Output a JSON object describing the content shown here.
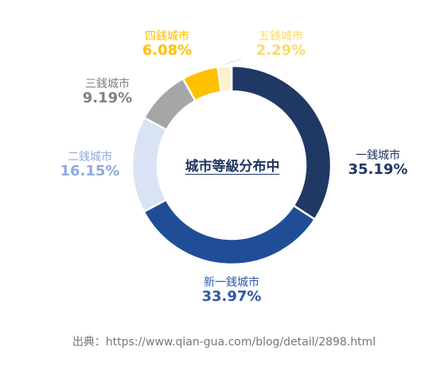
{
  "chart_data": {
    "type": "pie",
    "title": "城市等級分布中",
    "categories": [
      "一銭城市",
      "新一銭城市",
      "二銭城市",
      "三銭城市",
      "四銭城市",
      "五銭城市"
    ],
    "values": [
      35.19,
      33.97,
      16.15,
      9.19,
      6.08,
      2.29
    ],
    "labels": [
      "35.19%",
      "33.97%",
      "16.15%",
      "9.19%",
      "6.08%",
      "2.29%"
    ],
    "colors": [
      "#203864",
      "#1f4e96",
      "#dae3f3",
      "#a6a6a6",
      "#ffc000",
      "#fdf0cc"
    ],
    "label_colors": [
      "#203864",
      "#2f5aa8",
      "#8faadc",
      "#808080",
      "#ffc000",
      "#ffd966"
    ],
    "donut": true,
    "start_angle_deg": 0
  },
  "source": "出典：https://www.qian-gua.com/blog/detail/2898.html"
}
